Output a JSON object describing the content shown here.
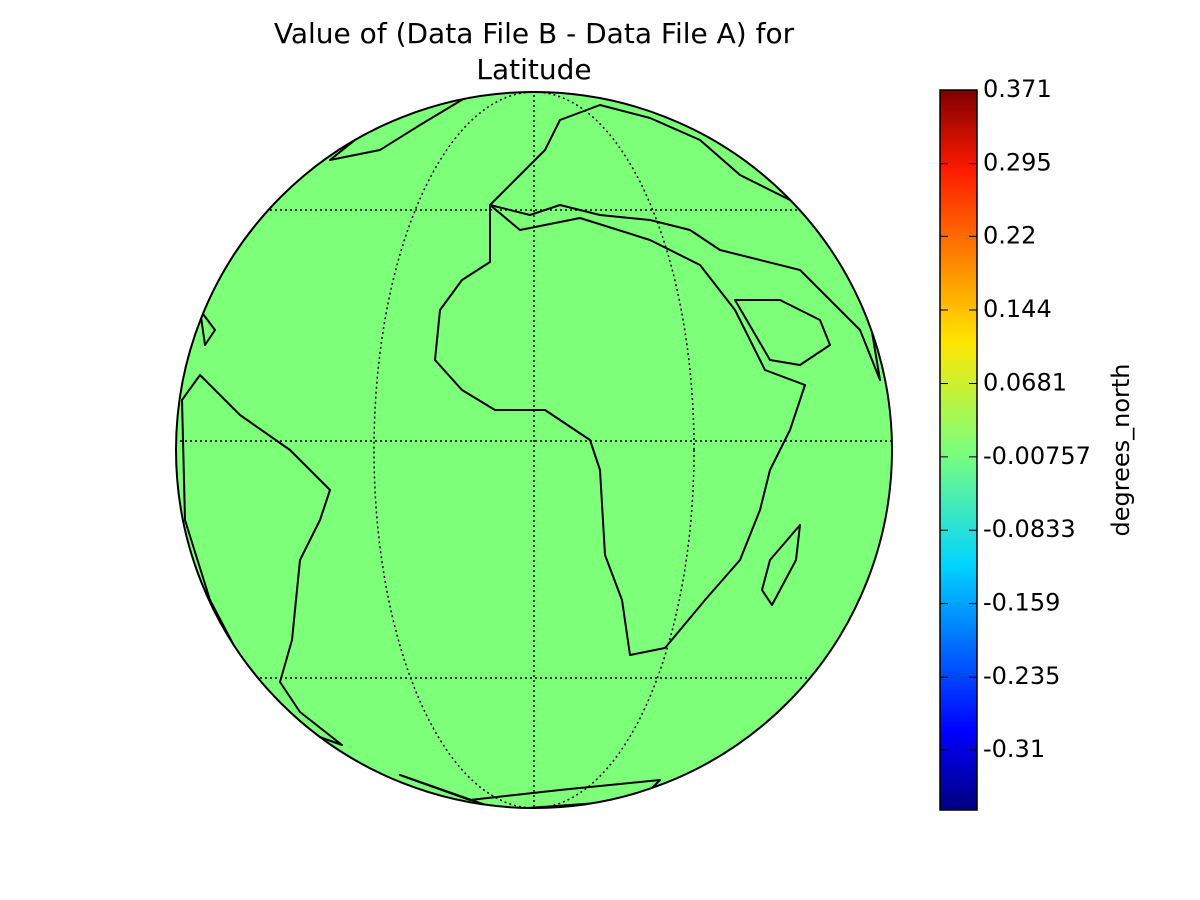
{
  "chart_data": {
    "type": "map",
    "title_lines": [
      "Value of (Data File B - Data File A) for",
      "Latitude"
    ],
    "colorbar": {
      "label": "degrees_north",
      "lim": [
        -0.372,
        0.371
      ],
      "ticks": [
        0.371,
        0.295,
        0.22,
        0.144,
        0.0681,
        -0.00757,
        -0.0833,
        -0.159,
        -0.235,
        -0.31
      ]
    }
  }
}
